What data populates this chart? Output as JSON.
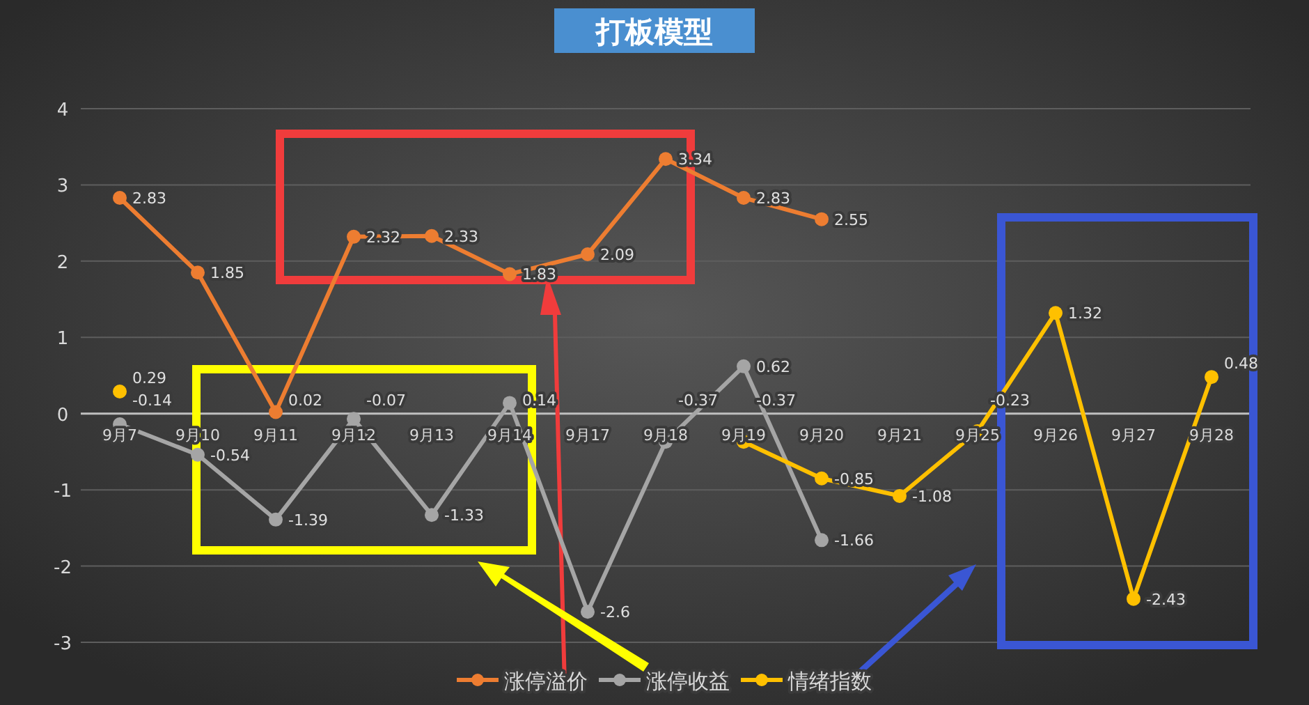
{
  "chart_data": {
    "type": "line",
    "title": "打板模型",
    "categories": [
      "9月7",
      "9月10",
      "9月11",
      "9月12",
      "9月13",
      "9月14",
      "9月17",
      "9月18",
      "9月19",
      "9月20",
      "9月21",
      "9月25",
      "9月26",
      "9月27",
      "9月28"
    ],
    "series": [
      {
        "name": "涨停溢价",
        "color": "#ed7d31",
        "values": [
          2.83,
          1.85,
          0.02,
          2.32,
          2.33,
          1.83,
          2.09,
          3.34,
          2.83,
          2.55,
          null,
          null,
          null,
          null,
          null
        ]
      },
      {
        "name": "涨停收益",
        "color": "#a5a5a5",
        "values": [
          -0.14,
          -0.54,
          -1.39,
          -0.07,
          -1.33,
          0.14,
          -2.6,
          -0.37,
          0.62,
          -1.66,
          null,
          null,
          null,
          null,
          null
        ]
      },
      {
        "name": "情绪指数",
        "color": "#ffc000",
        "values": [
          0.29,
          null,
          null,
          null,
          null,
          null,
          null,
          null,
          -0.37,
          -0.85,
          -1.08,
          -0.23,
          1.32,
          -2.43,
          0.48
        ]
      }
    ],
    "ylim": [
      -3,
      4
    ],
    "yticks": [
      -3,
      -2,
      -1,
      0,
      1,
      2,
      3,
      4
    ],
    "grid": "y",
    "legend": "bottom",
    "marker": "circle",
    "line_style": "solid",
    "data_labels": true
  }
}
